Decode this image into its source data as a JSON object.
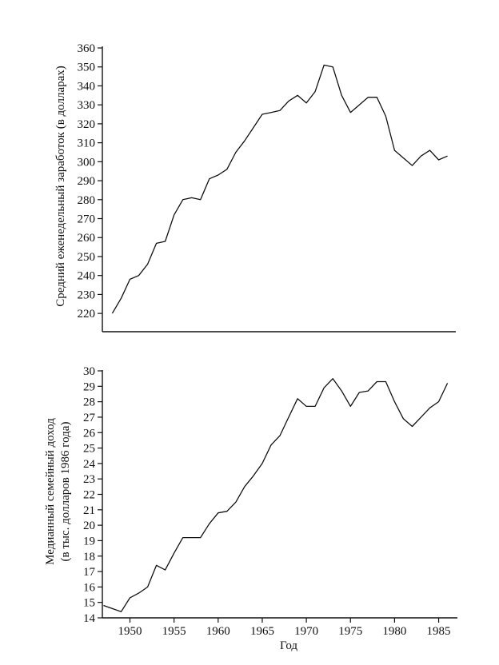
{
  "chart_data": [
    {
      "type": "line",
      "title": "",
      "xlabel": "",
      "ylabel": "Средний еженедельный заработок (в долларах)",
      "ylim": [
        215,
        360
      ],
      "xlim": [
        1947,
        1986.5
      ],
      "grid": false,
      "yticks": [
        220,
        230,
        240,
        250,
        260,
        270,
        280,
        290,
        300,
        310,
        320,
        330,
        340,
        350,
        360
      ],
      "series": [
        {
          "x": [
            1948,
            1949,
            1950,
            1951,
            1952,
            1953,
            1954,
            1955,
            1956,
            1957,
            1958,
            1959,
            1960,
            1961,
            1962,
            1963,
            1964,
            1965,
            1966,
            1967,
            1968,
            1969,
            1970,
            1971,
            1972,
            1973,
            1974,
            1975,
            1976,
            1977,
            1978,
            1979,
            1980,
            1981,
            1982,
            1983,
            1984,
            1985,
            1986
          ],
          "y": [
            220,
            228,
            238,
            240,
            246,
            257,
            258,
            272,
            280,
            281,
            280,
            291,
            293,
            296,
            305,
            311,
            318,
            325,
            326,
            327,
            332,
            335,
            331,
            337,
            351,
            350,
            335,
            326,
            330,
            334,
            334,
            324,
            306,
            302,
            298,
            303,
            306,
            301,
            303
          ]
        }
      ]
    },
    {
      "type": "line",
      "title": "",
      "xlabel": "Год",
      "ylabel_lines": [
        "Медианный семейный доход",
        "(в тыс. долларов 1986 года)"
      ],
      "ylim": [
        14,
        30
      ],
      "xlim": [
        1947,
        1986.5
      ],
      "grid": false,
      "yticks": [
        14,
        15,
        16,
        17,
        18,
        19,
        20,
        21,
        22,
        23,
        24,
        25,
        26,
        27,
        28,
        29,
        30
      ],
      "xticks": [
        1950,
        1955,
        1960,
        1965,
        1970,
        1975,
        1980,
        1985
      ],
      "series": [
        {
          "x": [
            1947,
            1948,
            1949,
            1950,
            1951,
            1952,
            1953,
            1954,
            1955,
            1956,
            1957,
            1958,
            1959,
            1960,
            1961,
            1962,
            1963,
            1964,
            1965,
            1966,
            1967,
            1968,
            1969,
            1970,
            1971,
            1972,
            1973,
            1974,
            1975,
            1976,
            1977,
            1978,
            1979,
            1980,
            1981,
            1982,
            1983,
            1984,
            1985,
            1986
          ],
          "y": [
            14.8,
            14.6,
            14.4,
            15.3,
            15.6,
            16.0,
            17.4,
            17.1,
            18.2,
            19.2,
            19.2,
            19.2,
            20.1,
            20.8,
            20.9,
            21.5,
            22.5,
            23.2,
            24.0,
            25.2,
            25.8,
            27.0,
            28.2,
            27.7,
            27.7,
            28.9,
            29.5,
            28.7,
            27.7,
            28.6,
            28.7,
            29.3,
            29.3,
            28.0,
            26.9,
            26.4,
            27.0,
            27.6,
            28.0,
            29.2
          ]
        }
      ]
    }
  ]
}
